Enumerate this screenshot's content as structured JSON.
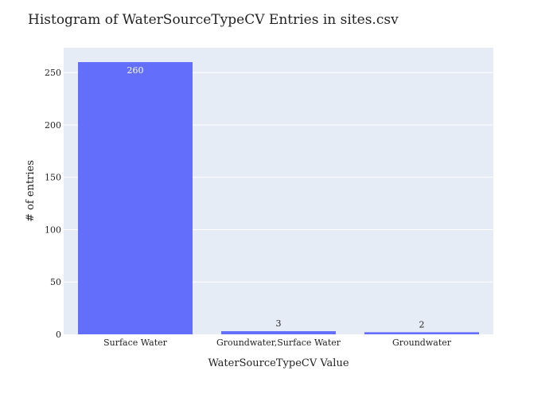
{
  "chart_data": {
    "type": "bar",
    "title": "Histogram of WaterSourceTypeCV Entries in sites.csv",
    "xlabel": "WaterSourceTypeCV Value",
    "ylabel": "# of entries",
    "categories": [
      "Surface Water",
      "Groundwater,Surface Water",
      "Groundwater"
    ],
    "values": [
      260,
      3,
      2
    ],
    "data_labels": [
      "260",
      "3",
      "2"
    ],
    "ylim": [
      0,
      273.7
    ],
    "yticks": [
      0,
      50,
      100,
      150,
      200,
      250
    ],
    "ytick_labels": [
      "0",
      "50",
      "100",
      "150",
      "200",
      "250"
    ],
    "grid": true,
    "legend": "none",
    "colors": {
      "bar": "#636efa",
      "plot_background": "#e5ecf6",
      "gridline": "#ffffff",
      "label_inside": "#ffffff",
      "label_outside": "#222222"
    }
  }
}
